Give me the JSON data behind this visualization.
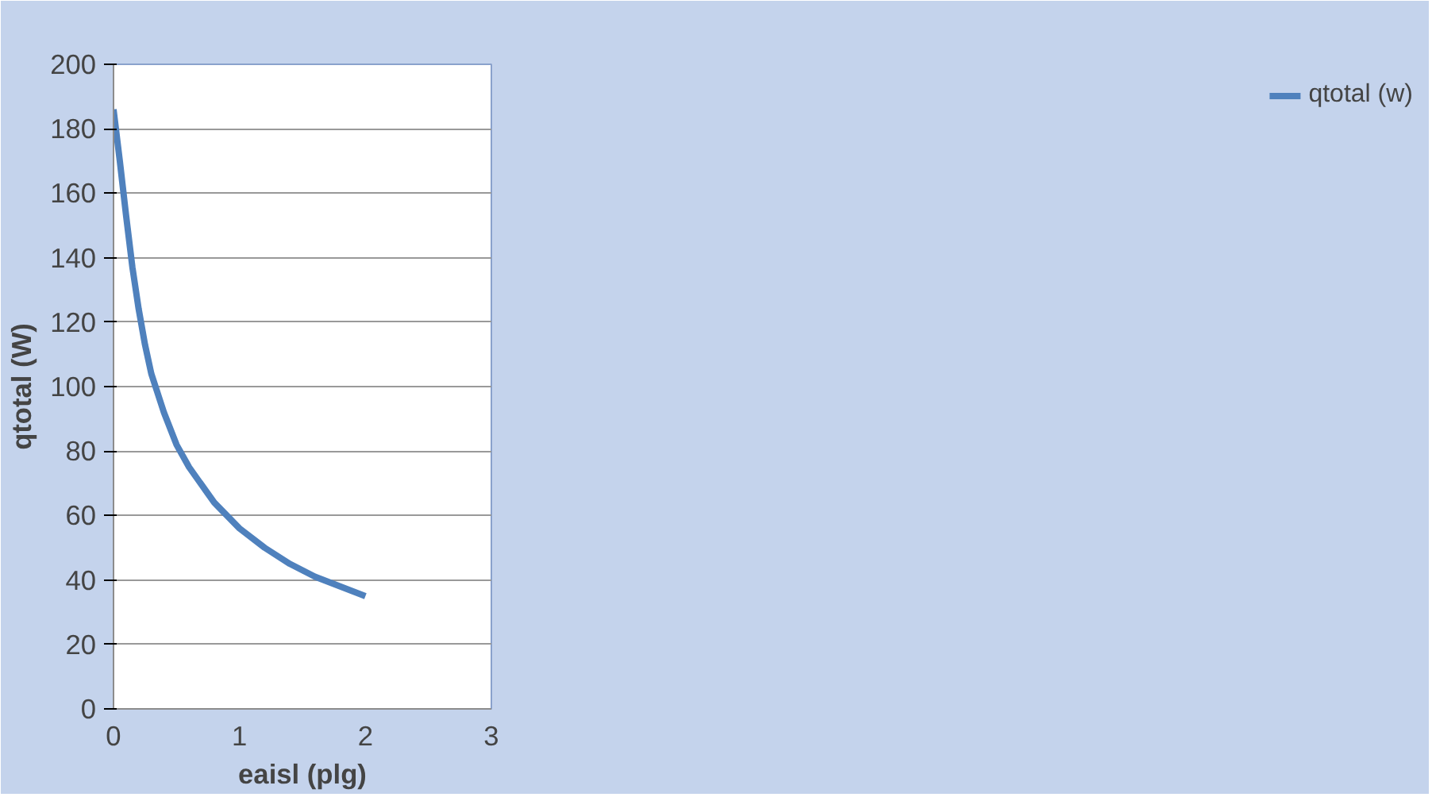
{
  "chart_data": {
    "type": "line",
    "xlabel": "eaisl (plg)",
    "ylabel": "qtotal (W)",
    "x": [
      0,
      0.05,
      0.1,
      0.15,
      0.2,
      0.25,
      0.3,
      0.4,
      0.5,
      0.6,
      0.8,
      1.0,
      1.2,
      1.4,
      1.6,
      1.8,
      2.0
    ],
    "series": [
      {
        "name": "qtotal (w)",
        "color": "#4f81bd",
        "values": [
          186,
          170,
          153,
          137,
          124,
          113,
          104,
          92,
          82,
          75,
          64,
          56,
          50,
          45,
          41,
          38,
          35
        ]
      }
    ],
    "xlim": [
      0,
      3
    ],
    "xticks": [
      0,
      1,
      2,
      3
    ],
    "ylim": [
      0,
      200
    ],
    "yticks": [
      0,
      20,
      40,
      60,
      80,
      100,
      120,
      140,
      160,
      180,
      200
    ],
    "grid": "y",
    "legend": "right",
    "marker": "none",
    "line_style": "solid"
  }
}
